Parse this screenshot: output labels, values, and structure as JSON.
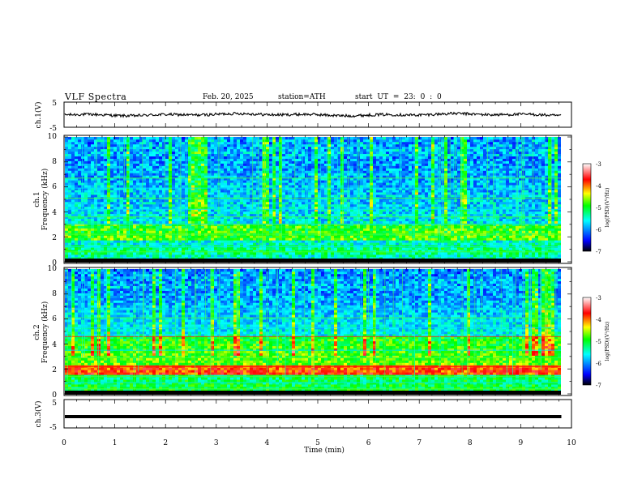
{
  "header": {
    "title": "VLF  Spectra",
    "date": "Feb. 20, 2025",
    "station": "station=ATH",
    "start": "start  UT  =    23: 0   : 0"
  },
  "chart_data": {
    "type": "heatmap",
    "x_axis": {
      "label": "Time  (min)",
      "range": [
        0,
        10
      ],
      "ticks": [
        "0",
        "1",
        "2",
        "3",
        "4",
        "5",
        "6",
        "7",
        "8",
        "9",
        "10"
      ]
    },
    "panels": [
      {
        "id": "waveform-1",
        "type": "line",
        "ylabel": "ch.1(V)",
        "ylim": [
          -5,
          5
        ],
        "ticks": [
          "5",
          "-5"
        ],
        "data_end_min": 9.8
      },
      {
        "id": "spectrogram-1",
        "type": "heatmap",
        "ylabel_channel": "ch.1",
        "ylabel": "Frequency  (kHz)",
        "ylim": [
          0,
          10
        ],
        "ticks": [
          "0",
          "2",
          "4",
          "6",
          "8",
          "10"
        ],
        "data_end_min": 9.8
      },
      {
        "id": "spectrogram-2",
        "type": "heatmap",
        "ylabel_channel": "ch.2",
        "ylabel": "Frequency  (kHz)",
        "ylim": [
          0,
          10
        ],
        "ticks": [
          "0",
          "2",
          "4",
          "6",
          "8",
          "10"
        ],
        "data_end_min": 9.8
      },
      {
        "id": "waveform-3",
        "type": "line",
        "ylabel": "ch.3(V)",
        "ylim": [
          -5,
          5
        ],
        "ticks": [
          "5",
          "-5"
        ],
        "level": -1,
        "data_end_min": 9.8
      }
    ],
    "colorbar": {
      "label": "log(PSD)(V²/Hz)",
      "range": [
        -7,
        -3
      ],
      "ticks": [
        "-3",
        "-4",
        "-5",
        "-6",
        "-7"
      ],
      "colors": [
        "#000000",
        "#0000ff",
        "#00ffff",
        "#00ff00",
        "#ffff00",
        "#ff0000",
        "#ffffff"
      ]
    }
  }
}
